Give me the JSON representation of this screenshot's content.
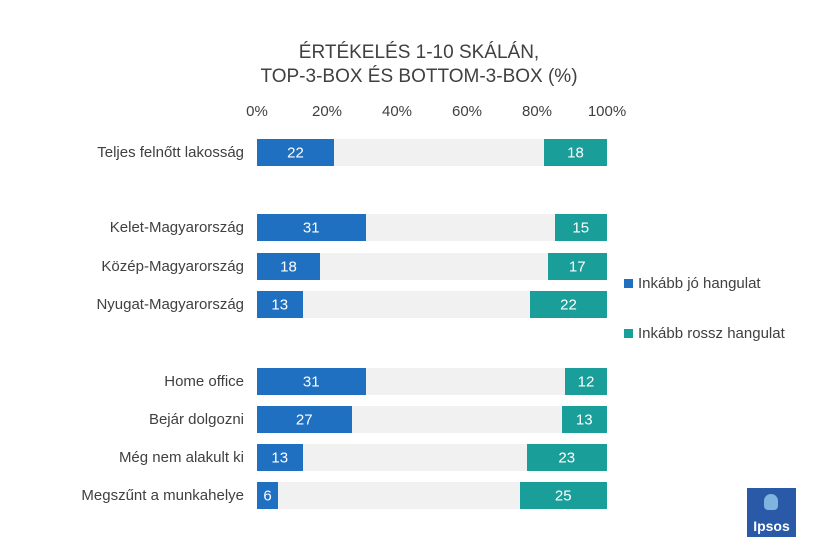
{
  "chart_data": {
    "type": "bar",
    "title_line1": "ÉRTÉKELÉS 1-10 SKÁLÁN,",
    "title_line2": "TOP-3-BOX ÉS BOTTOM-3-BOX (%)",
    "x_ticks": [
      "0%",
      "20%",
      "40%",
      "60%",
      "80%",
      "100%"
    ],
    "xlim": [
      0,
      100
    ],
    "legend_position": "right",
    "categories": [
      "Teljes felnőtt lakosság",
      "Kelet-Magyarország",
      "Közép-Magyarország",
      "Nyugat-Magyarország",
      "Home office",
      "Bejár dolgozni",
      "Még nem alakult ki",
      "Megszűnt a munkahelye"
    ],
    "series": [
      {
        "name": "Inkább jó hangulat",
        "color": "#1f70c1",
        "values": [
          22,
          31,
          18,
          13,
          31,
          27,
          13,
          6
        ]
      },
      {
        "name": "Inkább  rossz hangulat",
        "color": "#1a9e9a",
        "values": [
          18,
          15,
          17,
          22,
          12,
          13,
          23,
          25
        ]
      }
    ]
  },
  "logo": {
    "text": "Ipsos",
    "color": "#2a5aa7"
  }
}
